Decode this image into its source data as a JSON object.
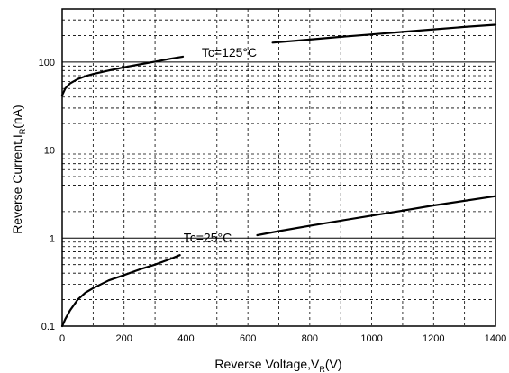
{
  "chart_data": {
    "type": "line",
    "xlabel": "Reverse Voltage,V",
    "xlabel_sub": "R",
    "xlabel_unit": "(V)",
    "ylabel": "Reverse Current,I",
    "ylabel_sub": "R",
    "ylabel_unit": "(nA)",
    "xlim": [
      0,
      1400
    ],
    "ylim": [
      0.1,
      400
    ],
    "y_scale": "log",
    "grid": true,
    "x_ticks": [
      "0",
      "200",
      "400",
      "600",
      "800",
      "1000",
      "1200",
      "1400"
    ],
    "y_ticks": [
      "0.1",
      "1",
      "10",
      "100"
    ],
    "series": [
      {
        "name": "Tc=125°C",
        "x": [
          0,
          10,
          25,
          50,
          75,
          100,
          150,
          200,
          250,
          300,
          350,
          390,
          680,
          800,
          900,
          1000,
          1100,
          1200,
          1300,
          1400
        ],
        "y": [
          42,
          50,
          57,
          64,
          69,
          73,
          80,
          87,
          94,
          101,
          109,
          115,
          166,
          180,
          193,
          206,
          220,
          235,
          250,
          265
        ]
      },
      {
        "name": "Tc=25°C",
        "x": [
          0,
          10,
          25,
          50,
          75,
          100,
          150,
          200,
          250,
          300,
          350,
          380,
          630,
          700,
          800,
          900,
          1000,
          1100,
          1200,
          1300,
          1400
        ],
        "y": [
          0.1,
          0.12,
          0.15,
          0.2,
          0.24,
          0.27,
          0.33,
          0.38,
          0.44,
          0.5,
          0.58,
          0.64,
          1.08,
          1.2,
          1.38,
          1.58,
          1.8,
          2.05,
          2.35,
          2.65,
          3.0
        ]
      }
    ]
  }
}
